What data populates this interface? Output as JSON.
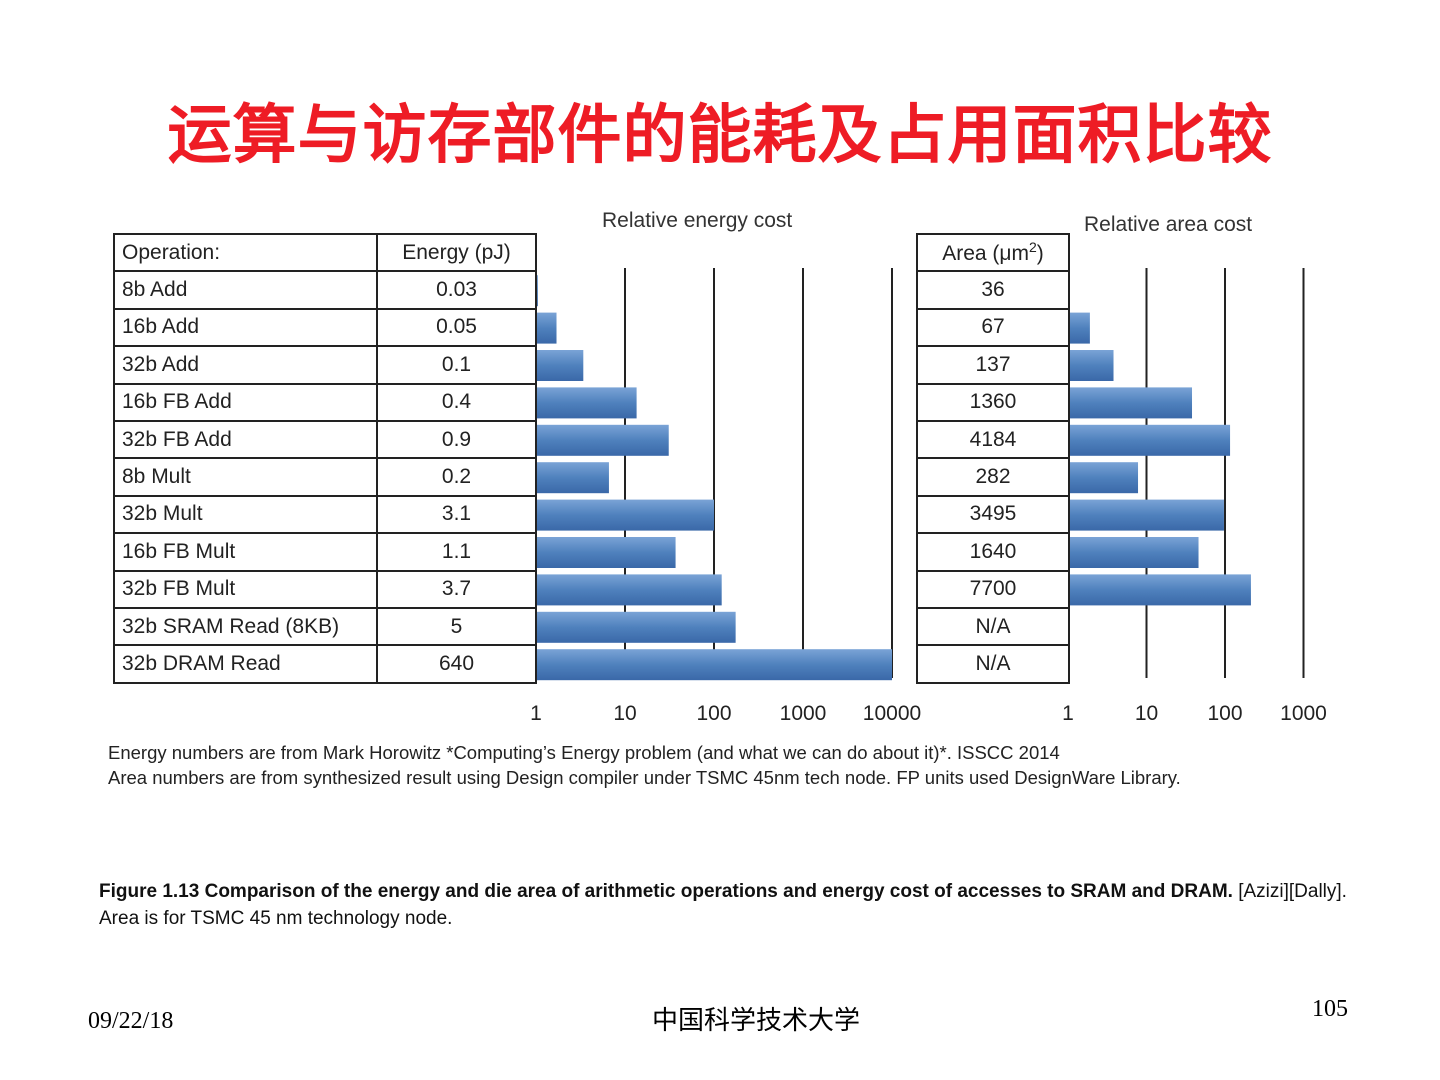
{
  "slide": {
    "title": "运算与访存部件的能耗及占用面积比较",
    "date": "09/22/18",
    "org": "中国科学技术大学",
    "page": "105"
  },
  "table": {
    "op_header": "Operation:",
    "energy_header": "Energy (pJ)",
    "area_header_pre": "Area (μm",
    "area_header_sup": "2",
    "area_header_post": ")",
    "rows": [
      {
        "op": "8b Add",
        "energy": "0.03",
        "area": "36"
      },
      {
        "op": "16b Add",
        "energy": "0.05",
        "area": "67"
      },
      {
        "op": "32b Add",
        "energy": "0.1",
        "area": "137"
      },
      {
        "op": "16b FB Add",
        "energy": "0.4",
        "area": "1360"
      },
      {
        "op": "32b FB Add",
        "energy": "0.9",
        "area": "4184"
      },
      {
        "op": "8b Mult",
        "energy": "0.2",
        "area": "282"
      },
      {
        "op": "32b Mult",
        "energy": "3.1",
        "area": "3495"
      },
      {
        "op": "16b FB Mult",
        "energy": "1.1",
        "area": "1640"
      },
      {
        "op": "32b FB Mult",
        "energy": "3.7",
        "area": "7700"
      },
      {
        "op": "32b SRAM Read (8KB)",
        "energy": "5",
        "area": "N/A"
      },
      {
        "op": "32b DRAM Read",
        "energy": "640",
        "area": "N/A"
      }
    ]
  },
  "chart_data": [
    {
      "type": "bar",
      "orientation": "horizontal",
      "title": "Relative energy cost",
      "scale": "log",
      "xlim": [
        1,
        10000
      ],
      "ticks": [
        "1",
        "10",
        "100",
        "1000",
        "10000"
      ],
      "categories": [
        "8b Add",
        "16b Add",
        "32b Add",
        "16b FB Add",
        "32b FB Add",
        "8b Mult",
        "32b Mult",
        "16b FB Mult",
        "32b FB Mult",
        "32b SRAM Read (8KB)",
        "32b DRAM Read"
      ],
      "values": [
        1.05,
        1.7,
        3.4,
        13.5,
        31,
        6.6,
        100,
        37,
        122,
        175,
        10000
      ],
      "color": "#4f81bd"
    },
    {
      "type": "bar",
      "orientation": "horizontal",
      "title": "Relative area cost",
      "scale": "log",
      "xlim": [
        1,
        1000
      ],
      "ticks": [
        "1",
        "10",
        "100",
        "1000"
      ],
      "categories": [
        "8b Add",
        "16b Add",
        "32b Add",
        "16b FB Add",
        "32b FB Add",
        "8b Mult",
        "32b Mult",
        "16b FB Mult",
        "32b FB Mult",
        "32b SRAM Read (8KB)",
        "32b DRAM Read"
      ],
      "values": [
        1,
        1.9,
        3.8,
        38,
        116,
        7.8,
        97,
        46,
        214,
        null,
        null
      ],
      "color": "#4f81bd"
    }
  ],
  "notes": [
    "Energy numbers are from Mark Horowitz *Computing’s Energy problem (and what we can do about it)*. ISSCC 2014",
    "Area numbers are from synthesized result using Design compiler under TSMC 45nm tech node. FP units used DesignWare Library."
  ],
  "caption": {
    "bold": "Figure 1.13 Comparison of the energy and die area of arithmetic operations and energy cost of accesses to SRAM and DRAM.",
    "normal": " [Azizi][Dally]. Area is for TSMC 45 nm technology node."
  }
}
